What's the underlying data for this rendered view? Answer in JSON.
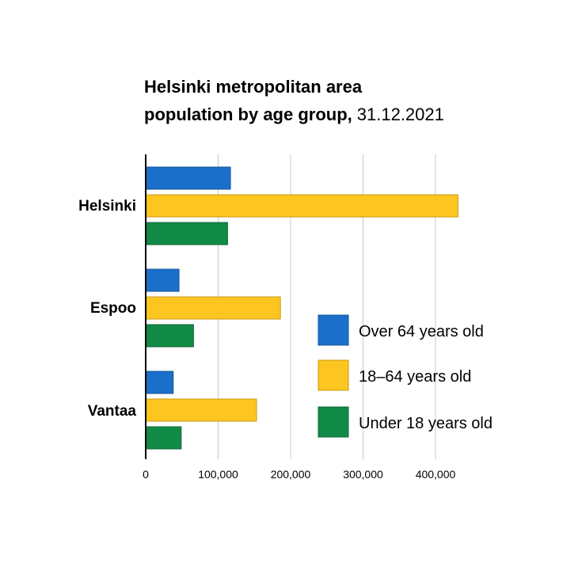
{
  "chart_data": {
    "type": "bar",
    "orientation": "horizontal",
    "title_bold": "Helsinki metropolitan area population by age group,",
    "title_line1": "Helsinki metropolitan area",
    "title_line2_bold": "population by age group,",
    "title_date": "31.12.2021",
    "categories": [
      "Helsinki",
      "Espoo",
      "Vantaa"
    ],
    "series": [
      {
        "name": "Over 64 years old",
        "color": "#1a6fca",
        "values": [
          117000,
          46000,
          38000
        ]
      },
      {
        "name": "18–64 years old",
        "color": "#fdc520",
        "values": [
          431000,
          186000,
          153000
        ]
      },
      {
        "name": "Under 18 years old",
        "color": "#128a47",
        "values": [
          113000,
          66000,
          49000
        ]
      }
    ],
    "xlim": [
      0,
      450000
    ],
    "xticks": [
      0,
      100000,
      200000,
      300000,
      400000
    ],
    "xtick_labels": [
      "0",
      "100,000",
      "200,000",
      "300,000",
      "400,000"
    ],
    "grid": true,
    "legend_position": "bottom-right"
  }
}
